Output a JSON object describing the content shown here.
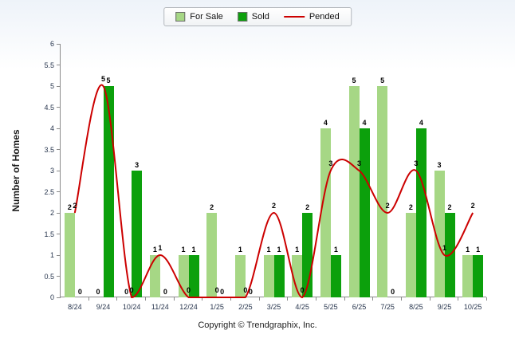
{
  "legend": {
    "items": [
      {
        "label": "For Sale",
        "type": "box",
        "color": "#a6d785"
      },
      {
        "label": "Sold",
        "type": "box",
        "color": "#0ca00c"
      },
      {
        "label": "Pended",
        "type": "line",
        "color": "#cc0000"
      }
    ]
  },
  "y_axis": {
    "title": "Number of Homes",
    "tick_labels": [
      "6",
      "5.5",
      "5",
      "4.5",
      "4",
      "3.5",
      "3",
      "2.5",
      "2",
      "1.5",
      "1",
      "0.5",
      "0"
    ]
  },
  "footer": {
    "copyright": "Copyright © Trendgraphix, Inc."
  },
  "chart_data": {
    "type": "bar",
    "categories": [
      "8/24",
      "9/24",
      "10/24",
      "11/24",
      "12/24",
      "1/25",
      "2/25",
      "3/25",
      "4/25",
      "5/25",
      "6/25",
      "7/25",
      "8/25",
      "9/25",
      "10/25"
    ],
    "series": [
      {
        "name": "For Sale",
        "type": "bar",
        "color": "#a6d785",
        "values": [
          2,
          0,
          0,
          1,
          1,
          2,
          1,
          1,
          1,
          4,
          5,
          5,
          2,
          3,
          1
        ]
      },
      {
        "name": "Sold",
        "type": "bar",
        "color": "#0ca00c",
        "values": [
          0,
          5,
          3,
          0,
          1,
          0,
          0,
          1,
          2,
          1,
          4,
          0,
          4,
          2,
          1
        ]
      },
      {
        "name": "Pended",
        "type": "line",
        "color": "#cc0000",
        "values": [
          2,
          5,
          0,
          1,
          0,
          0,
          0,
          2,
          0,
          3,
          3,
          2,
          3,
          1,
          2
        ]
      }
    ],
    "title": "",
    "xlabel": "",
    "ylabel": "Number of Homes",
    "ylim": [
      0,
      6
    ],
    "ytick_step": 0.5,
    "legend_position": "top",
    "grid": false
  }
}
